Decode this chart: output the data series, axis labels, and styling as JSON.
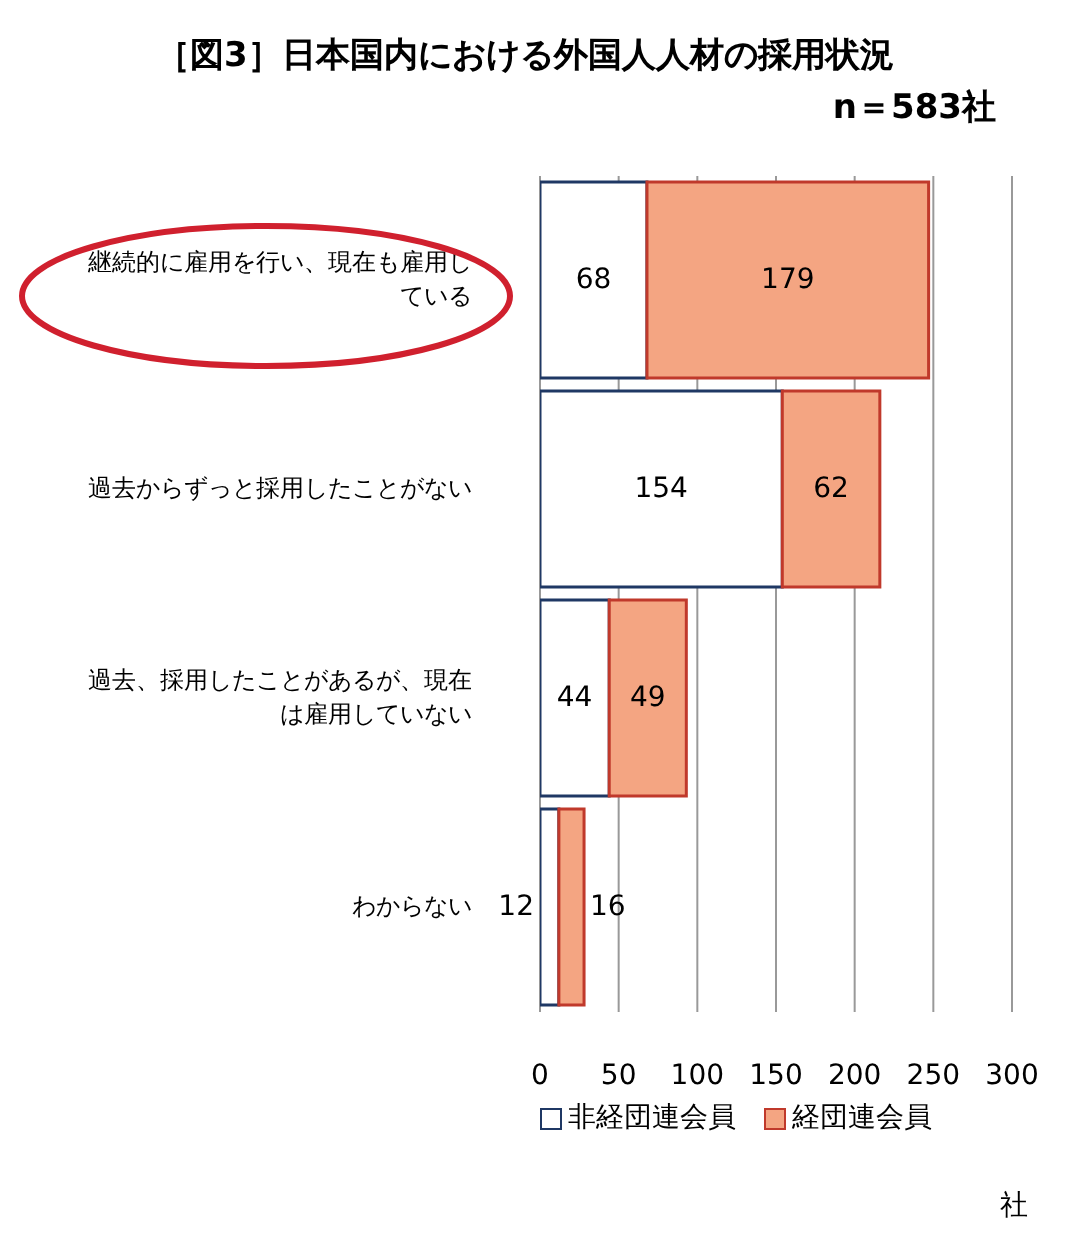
{
  "chart_data": {
    "type": "bar",
    "orientation": "horizontal",
    "stacked": true,
    "title": "［図3］日本国内における外国人人材の採用状況",
    "subtitle": "n＝583社",
    "xlabel": "社",
    "categories": [
      "継続的に雇用を行い、現在も雇用している",
      "過去からずっと採用したことがない",
      "過去、採用したことがあるが、現在は雇用していない",
      "わからない"
    ],
    "series": [
      {
        "name": "非経団連会員",
        "color": "#ffffff",
        "values": [
          68,
          154,
          44,
          12
        ]
      },
      {
        "name": "経団連会員",
        "color": "#f4a582",
        "values": [
          179,
          62,
          49,
          16
        ]
      }
    ],
    "xlim": [
      0,
      300
    ],
    "xticks": [
      0,
      50,
      100,
      150,
      200,
      250,
      300
    ],
    "grid": "x",
    "legend": "bottom left",
    "data_labels": true
  }
}
